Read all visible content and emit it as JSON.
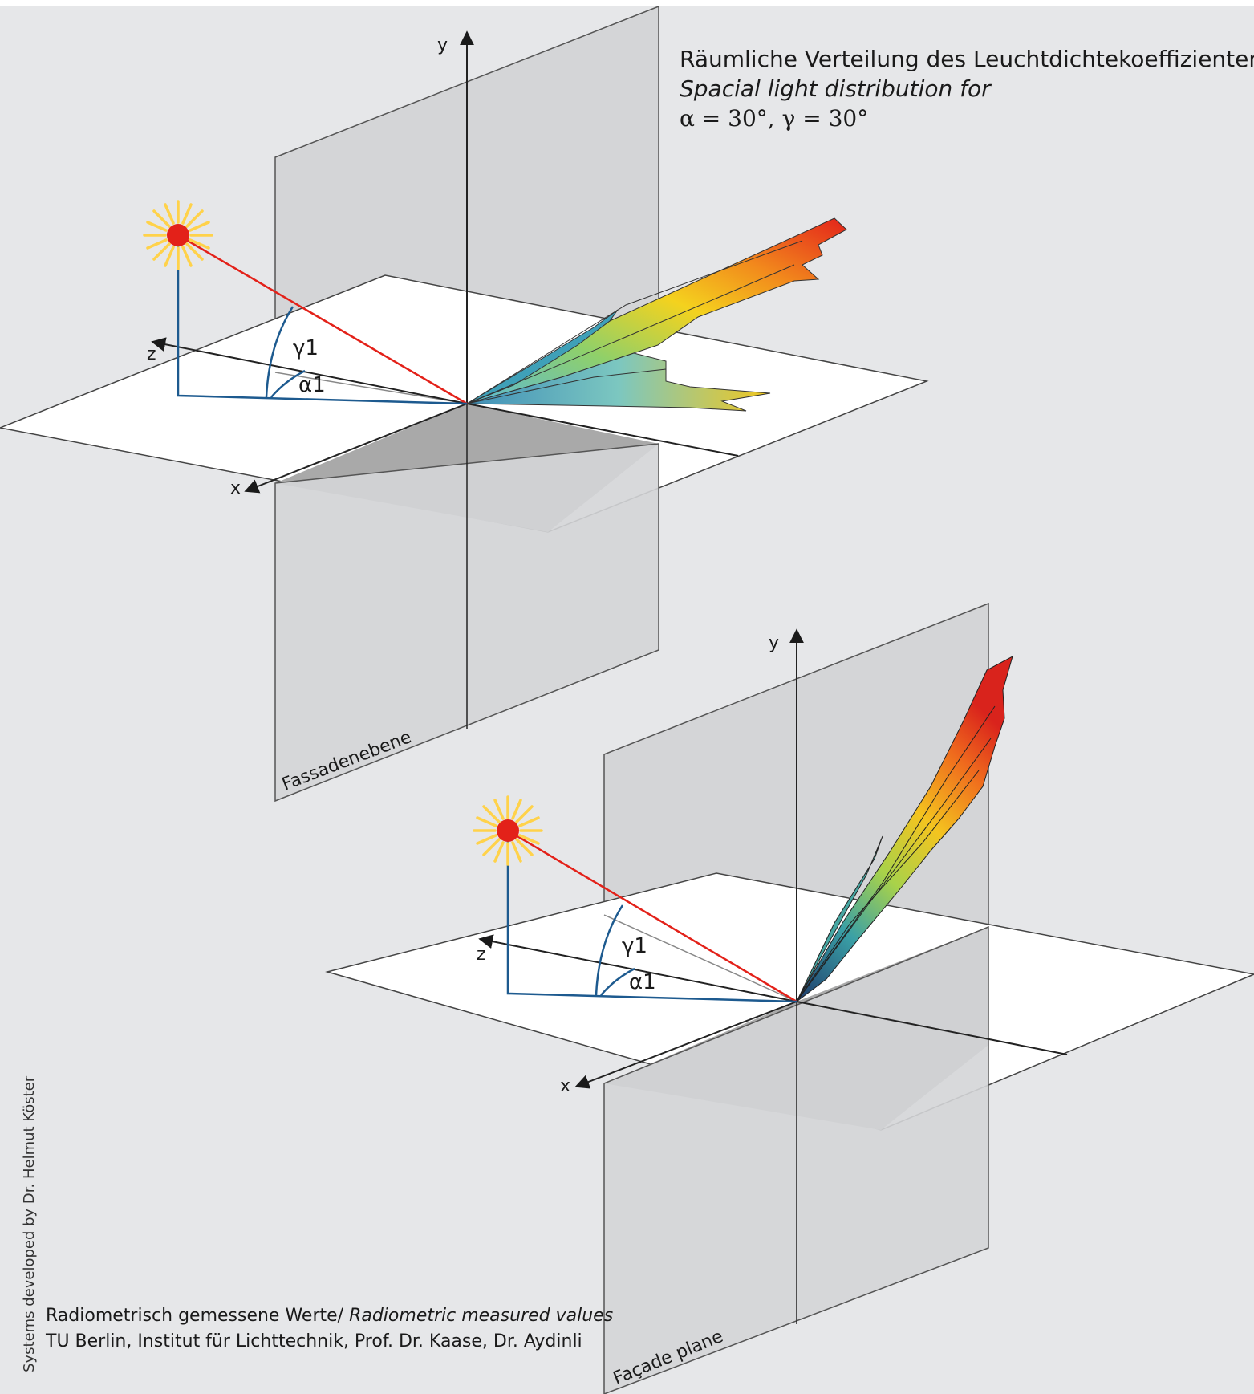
{
  "title": {
    "line1": "Räumliche Verteilung des Leuchtdichtekoeffizienten für",
    "line2": "Spacial light distribution for",
    "line3": "α = 30°, γ = 30°"
  },
  "diagram_top": {
    "axis_y": "y",
    "axis_z": "z",
    "axis_x": "x",
    "angle_gamma": "γ1",
    "angle_alpha": "α1",
    "plane_label": "Fassadenebene"
  },
  "diagram_bottom": {
    "axis_y": "y",
    "axis_z": "z",
    "axis_x": "x",
    "angle_gamma": "γ1",
    "angle_alpha": "α1",
    "plane_label": "Façade plane"
  },
  "credit_vertical": "Systems developed by Dr. Helmut Köster",
  "footer": {
    "line1_regular": "Radiometrisch gemessene Werte/ ",
    "line1_italic": "Radiometric measured values",
    "line2": "TU Berlin, Institut für Lichttechnik, Prof. Dr. Kaase, Dr. Aydinli"
  },
  "colors": {
    "background": "#e6e7e9",
    "facade_plane": "#d4d5d7",
    "shadow": "#a9a9a9",
    "ground_plane": "#ffffff",
    "sun_ray": "#e32119",
    "sun_rays_glow": "#ffd24a",
    "angle_lines": "#1d5a8f"
  }
}
